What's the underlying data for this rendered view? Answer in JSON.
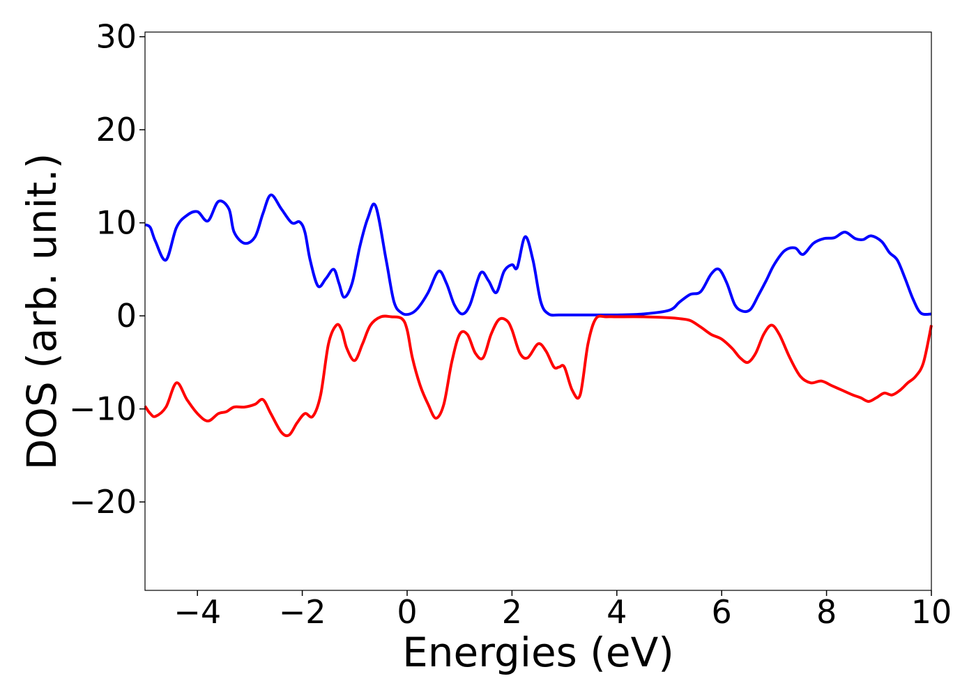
{
  "chart_data": {
    "type": "line",
    "title": "",
    "xlabel": "Energies (eV)",
    "ylabel": "DOS (arb. unit.)",
    "xlim": [
      -5,
      10
    ],
    "ylim": [
      -29.5,
      30.5
    ],
    "xticks": [
      -4,
      -2,
      0,
      2,
      4,
      6,
      8,
      10
    ],
    "xtick_labels": [
      "−4",
      "−2",
      "0",
      "2",
      "4",
      "6",
      "8",
      "10"
    ],
    "yticks": [
      -20,
      -10,
      0,
      10,
      20,
      30
    ],
    "ytick_labels": [
      "−20",
      "−10",
      "0",
      "10",
      "20",
      "30"
    ],
    "grid": false,
    "legend": "none",
    "series": [
      {
        "color": "#0000ff",
        "x": [
          -5.0,
          -4.9,
          -4.8,
          -4.6,
          -4.4,
          -4.2,
          -4.0,
          -3.8,
          -3.6,
          -3.4,
          -3.3,
          -3.1,
          -2.9,
          -2.75,
          -2.6,
          -2.4,
          -2.2,
          -2.05,
          -1.95,
          -1.85,
          -1.7,
          -1.55,
          -1.4,
          -1.3,
          -1.2,
          -1.05,
          -0.9,
          -0.75,
          -0.6,
          -0.4,
          -0.25,
          -0.1,
          0.05,
          0.2,
          0.4,
          0.6,
          0.75,
          0.9,
          1.05,
          1.2,
          1.4,
          1.55,
          1.7,
          1.85,
          2.0,
          2.1,
          2.25,
          2.4,
          2.55,
          2.7,
          2.9,
          3.05,
          3.2,
          3.4,
          3.6,
          3.8,
          4.0,
          4.5,
          5.0,
          5.2,
          5.4,
          5.6,
          5.8,
          5.95,
          6.1,
          6.25,
          6.4,
          6.55,
          6.7,
          6.85,
          7.0,
          7.2,
          7.4,
          7.55,
          7.75,
          7.95,
          8.15,
          8.35,
          8.55,
          8.7,
          8.85,
          9.05,
          9.2,
          9.35,
          9.5,
          9.65,
          9.8,
          10.0
        ],
        "values": [
          9.8,
          9.5,
          8.0,
          6.0,
          9.5,
          10.8,
          11.2,
          10.2,
          12.3,
          11.5,
          9.0,
          7.8,
          8.5,
          11.0,
          13.0,
          11.5,
          10.0,
          10.1,
          9.0,
          6.0,
          3.2,
          4.0,
          5.0,
          3.5,
          2.0,
          3.5,
          7.5,
          10.5,
          11.8,
          6.0,
          1.5,
          0.3,
          0.2,
          0.8,
          2.5,
          4.8,
          3.5,
          1.2,
          0.2,
          1.2,
          4.6,
          3.8,
          2.5,
          4.8,
          5.5,
          5.2,
          8.5,
          6.0,
          1.5,
          0.2,
          0.1,
          0.1,
          0.1,
          0.1,
          0.1,
          0.1,
          0.1,
          0.2,
          0.6,
          1.5,
          2.3,
          2.6,
          4.5,
          5.0,
          3.5,
          1.2,
          0.5,
          0.7,
          2.2,
          3.8,
          5.5,
          7.0,
          7.3,
          6.6,
          7.8,
          8.3,
          8.4,
          9.0,
          8.3,
          8.2,
          8.6,
          8.0,
          6.8,
          6.0,
          4.0,
          1.8,
          0.3,
          0.2
        ]
      },
      {
        "color": "#ff0000",
        "x": [
          -5.0,
          -4.9,
          -4.8,
          -4.6,
          -4.4,
          -4.2,
          -4.0,
          -3.8,
          -3.6,
          -3.45,
          -3.3,
          -3.1,
          -2.9,
          -2.75,
          -2.6,
          -2.4,
          -2.25,
          -2.1,
          -1.95,
          -1.8,
          -1.65,
          -1.5,
          -1.35,
          -1.25,
          -1.15,
          -1.0,
          -0.85,
          -0.7,
          -0.5,
          -0.3,
          -0.1,
          0.0,
          0.1,
          0.25,
          0.4,
          0.55,
          0.7,
          0.85,
          1.0,
          1.15,
          1.3,
          1.45,
          1.6,
          1.75,
          1.9,
          2.0,
          2.15,
          2.3,
          2.5,
          2.65,
          2.8,
          2.9,
          3.0,
          3.15,
          3.3,
          3.45,
          3.6,
          3.8,
          4.0,
          4.5,
          5.0,
          5.2,
          5.4,
          5.6,
          5.8,
          6.0,
          6.2,
          6.35,
          6.5,
          6.65,
          6.8,
          6.95,
          7.1,
          7.3,
          7.5,
          7.7,
          7.9,
          8.1,
          8.3,
          8.5,
          8.65,
          8.8,
          8.95,
          9.1,
          9.25,
          9.4,
          9.55,
          9.7,
          9.85,
          10.0
        ],
        "values": [
          -9.7,
          -10.5,
          -10.8,
          -9.8,
          -7.2,
          -9.0,
          -10.5,
          -11.3,
          -10.5,
          -10.3,
          -9.8,
          -9.8,
          -9.5,
          -9.0,
          -10.5,
          -12.5,
          -12.8,
          -11.5,
          -10.5,
          -10.8,
          -8.5,
          -3.0,
          -1.0,
          -1.5,
          -3.5,
          -4.8,
          -3.0,
          -1.0,
          -0.1,
          -0.1,
          -0.3,
          -1.5,
          -4.5,
          -7.5,
          -9.5,
          -11.0,
          -9.5,
          -5.0,
          -2.0,
          -2.0,
          -4.0,
          -4.5,
          -2.0,
          -0.4,
          -0.5,
          -1.5,
          -4.0,
          -4.5,
          -3.0,
          -3.8,
          -5.5,
          -5.5,
          -5.5,
          -8.0,
          -8.5,
          -3.0,
          -0.3,
          -0.1,
          -0.1,
          -0.1,
          -0.2,
          -0.3,
          -0.5,
          -1.2,
          -2.0,
          -2.5,
          -3.5,
          -4.5,
          -5.0,
          -4.0,
          -2.0,
          -1.0,
          -2.0,
          -4.5,
          -6.5,
          -7.2,
          -7.0,
          -7.5,
          -8.0,
          -8.5,
          -8.8,
          -9.2,
          -8.8,
          -8.3,
          -8.5,
          -8.0,
          -7.2,
          -6.5,
          -5.0,
          -1.0
        ]
      }
    ]
  }
}
